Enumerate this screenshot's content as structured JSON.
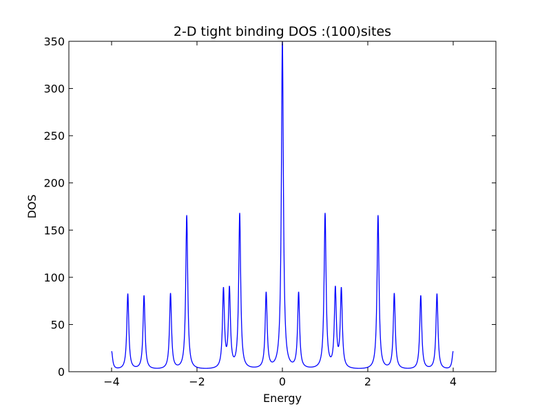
{
  "chart_data": {
    "type": "line",
    "title": "2-D tight binding DOS :(100)sites",
    "xlabel": "Energy",
    "ylabel": "DOS",
    "xlim": [
      -5,
      5
    ],
    "ylim": [
      0,
      350
    ],
    "xticks": [
      -4,
      -2,
      0,
      2,
      4
    ],
    "xtick_labels": [
      "−4",
      "−2",
      "0",
      "2",
      "4"
    ],
    "yticks": [
      0,
      50,
      100,
      150,
      200,
      250,
      300,
      350
    ],
    "ytick_labels": [
      "0",
      "50",
      "100",
      "150",
      "200",
      "250",
      "300",
      "350"
    ],
    "grid": false,
    "series": [
      {
        "color": "#0000ff",
        "x_range": [
          -4,
          4
        ],
        "baseline": 1.8,
        "peaks": [
          {
            "x": -3.62,
            "y": 82
          },
          {
            "x": -3.24,
            "y": 80
          },
          {
            "x": -2.62,
            "y": 82
          },
          {
            "x": -2.24,
            "y": 165
          },
          {
            "x": -1.38,
            "y": 85
          },
          {
            "x": -1.24,
            "y": 85
          },
          {
            "x": -1.0,
            "y": 166
          },
          {
            "x": -0.38,
            "y": 82
          },
          {
            "x": 0.0,
            "y": 350
          },
          {
            "x": 0.38,
            "y": 82
          },
          {
            "x": 1.0,
            "y": 166
          },
          {
            "x": 1.24,
            "y": 85
          },
          {
            "x": 1.38,
            "y": 85
          },
          {
            "x": 2.24,
            "y": 165
          },
          {
            "x": 2.62,
            "y": 82
          },
          {
            "x": 3.24,
            "y": 80
          },
          {
            "x": 3.62,
            "y": 82
          }
        ],
        "endpoints": [
          {
            "x": -4.0,
            "y": 21
          },
          {
            "x": 4.0,
            "y": 21
          }
        ]
      }
    ]
  }
}
